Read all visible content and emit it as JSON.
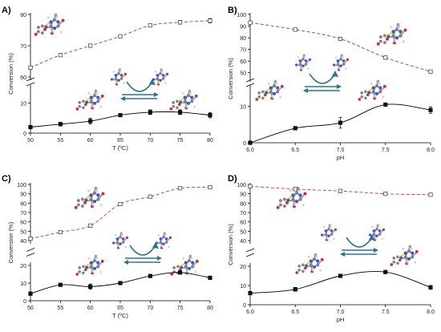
{
  "chart_data": [
    {
      "panel_label": "A)",
      "type": "line",
      "xlabel": "T (ºC)",
      "ylabel": "Conversion (%)",
      "xlim": [
        50,
        80
      ],
      "xticks": [
        50,
        55,
        60,
        65,
        70,
        75,
        80
      ],
      "upper_ylim": [
        60,
        80
      ],
      "upper_yticks": [
        60,
        70,
        80
      ],
      "lower_ylim": [
        0,
        15
      ],
      "lower_yticks": [
        0,
        10
      ],
      "series": [
        {
          "style": "dashed",
          "color": "#4a4acc",
          "marker": "open",
          "x": [
            50,
            55,
            60,
            65,
            70,
            75,
            80
          ],
          "y": [
            63,
            67,
            70,
            73,
            76.5,
            77.5,
            78
          ],
          "err": [
            0,
            0,
            0,
            0,
            0,
            0.6,
            0.7
          ]
        },
        {
          "style": "solid",
          "color": "#000000",
          "marker": "filled",
          "x": [
            50,
            55,
            60,
            65,
            70,
            75,
            80
          ],
          "y": [
            2,
            3,
            4,
            6,
            7,
            7,
            6
          ],
          "err": [
            0,
            0.6,
            1.0,
            0.4,
            0.8,
            0.8,
            0.9
          ]
        }
      ]
    },
    {
      "panel_label": "B)",
      "type": "line",
      "xlabel": "pH",
      "ylabel": "Conversion (%)",
      "xlim": [
        6.0,
        8.0
      ],
      "xticks": [
        "6.0",
        "6.5",
        "7.0",
        "7.5",
        "8.0"
      ],
      "upper_ylim": [
        45,
        100
      ],
      "upper_yticks": [
        50,
        60,
        70,
        80,
        90,
        100
      ],
      "lower_ylim": [
        0,
        15
      ],
      "lower_yticks": [
        0,
        10
      ],
      "series": [
        {
          "style": "dashed",
          "color": "#4a4acc",
          "marker": "open",
          "x": [
            6.0,
            6.5,
            7.0,
            7.5,
            8.0
          ],
          "y": [
            93,
            87,
            79,
            63,
            51
          ],
          "err": [
            1,
            0,
            0,
            0,
            0
          ]
        },
        {
          "style": "solid",
          "color": "#000000",
          "marker": "filled",
          "x": [
            6.0,
            6.5,
            7.0,
            7.5,
            8.0
          ],
          "y": [
            0,
            4,
            5.5,
            10.5,
            9
          ],
          "err": [
            0,
            0.4,
            1.5,
            0.4,
            0.9
          ]
        }
      ]
    },
    {
      "panel_label": "C)",
      "type": "line",
      "xlabel": "T (ºC)",
      "ylabel": "Conversion (%)",
      "xlim": [
        50,
        80
      ],
      "xticks": [
        50,
        55,
        60,
        65,
        70,
        75,
        80
      ],
      "upper_ylim": [
        40,
        100
      ],
      "upper_yticks": [
        40,
        50,
        60,
        70,
        80,
        90,
        100
      ],
      "lower_ylim": [
        0,
        20
      ],
      "lower_yticks": [
        0,
        10,
        20
      ],
      "series": [
        {
          "style": "dashed",
          "color": "#e03030",
          "marker": "open",
          "x": [
            50,
            55,
            60,
            65,
            70,
            75,
            80
          ],
          "y": [
            42,
            49,
            56,
            79,
            87,
            96,
            97
          ],
          "err": [
            1.0,
            0.8,
            0.8,
            0.8,
            1.5,
            0,
            0.8
          ]
        },
        {
          "style": "solid",
          "color": "#000000",
          "marker": "filled",
          "x": [
            50,
            55,
            60,
            65,
            70,
            75,
            80
          ],
          "y": [
            4,
            9,
            8,
            10,
            14,
            16,
            13
          ],
          "err": [
            0,
            0,
            1.5,
            0,
            0,
            0,
            0
          ]
        }
      ]
    },
    {
      "panel_label": "D)",
      "type": "line",
      "xlabel": "pH",
      "ylabel": "Conversion (%)",
      "xlim": [
        6.0,
        8.0
      ],
      "xticks": [
        "6.0",
        "6.5",
        "7.0",
        "7.5",
        "8.0"
      ],
      "upper_ylim": [
        40,
        100
      ],
      "upper_yticks": [
        40,
        50,
        60,
        70,
        80,
        90,
        100
      ],
      "lower_ylim": [
        0,
        20
      ],
      "lower_yticks": [
        0,
        10,
        20
      ],
      "series": [
        {
          "style": "dashed",
          "color": "#e03030",
          "marker": "open",
          "x": [
            6.0,
            6.5,
            7.0,
            7.5,
            8.0
          ],
          "y": [
            98,
            95,
            93,
            90,
            89
          ],
          "err": [
            0,
            0,
            0,
            0,
            1.5
          ]
        },
        {
          "style": "solid",
          "color": "#000000",
          "marker": "filled",
          "x": [
            6.0,
            6.5,
            7.0,
            7.5,
            8.0
          ],
          "y": [
            6,
            8,
            15,
            17,
            9
          ],
          "err": [
            0,
            1.0,
            0,
            0,
            1.0
          ]
        }
      ]
    }
  ]
}
